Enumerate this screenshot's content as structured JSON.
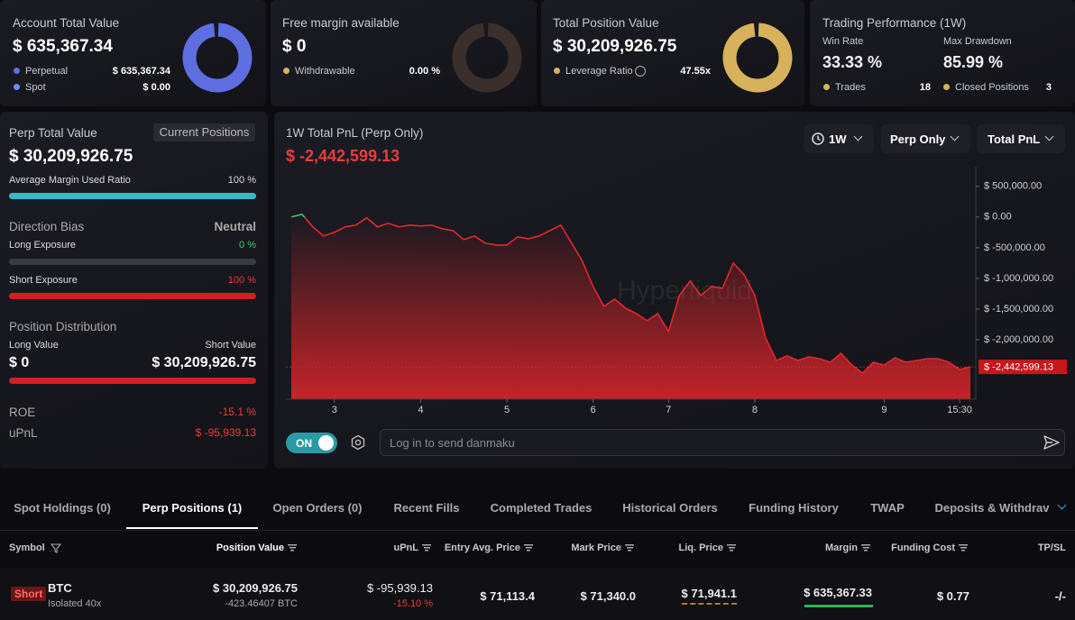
{
  "summary_cards": [
    {
      "title": "Account Total Value",
      "value": "$ 635,367.34",
      "legend": [
        {
          "label": "Perpetual",
          "value": "$ 635,367.34"
        },
        {
          "label": "Spot",
          "value": "$ 0.00"
        }
      ]
    },
    {
      "title": "Free margin available",
      "value": "$ 0",
      "legend": [
        {
          "label": "Withdrawable",
          "value": "0.00 %"
        }
      ]
    },
    {
      "title": "Total Position Value",
      "value": "$ 30,209,926.75",
      "legend": [
        {
          "label": "Leverage Ratio",
          "value": "47.55x"
        }
      ]
    }
  ],
  "performance": {
    "title": "Trading Performance (1W)",
    "win_rate_label": "Win Rate",
    "win_rate": "33.33 %",
    "max_drawdown_label": "Max Drawdown",
    "max_drawdown": "85.99 %",
    "trades_label": "Trades",
    "trades": "18",
    "closed_label": "Closed Positions",
    "closed": "3"
  },
  "perp_panel": {
    "title": "Perp Total Value",
    "button": "Current Positions",
    "value": "$ 30,209,926.75",
    "margin_label": "Average Margin Used Ratio",
    "margin_value": "100 %",
    "bias_label": "Direction Bias",
    "bias_value": "Neutral",
    "long_label": "Long Exposure",
    "long_value": "0 %",
    "short_label": "Short Exposure",
    "short_value": "100 %",
    "distribution_label": "Position Distribution",
    "long_value_label": "Long Value",
    "short_value_label": "Short Value",
    "long_amount": "$ 0",
    "short_amount": "$ 30,209,926.75",
    "roe_label": "ROE",
    "roe_value": "-15.1 %",
    "upnl_label": "uPnL",
    "upnl_value": "$ -95,939.13"
  },
  "chart_controls": {
    "range": "1W",
    "scope": "Perp Only",
    "metric": "Total PnL",
    "toggle": "ON",
    "placeholder": "Log in to send danmaku"
  },
  "chart_data": {
    "type": "area",
    "title": "1W Total PnL (Perp Only)",
    "watermark": "Hyperliquid",
    "x": [
      0,
      1,
      2,
      3,
      4,
      5,
      6,
      7,
      8,
      9,
      10,
      11,
      12,
      13,
      14,
      15,
      16,
      17,
      18,
      19,
      20,
      21,
      22,
      23,
      24,
      25,
      26,
      27,
      28,
      29,
      30,
      31,
      32,
      33,
      34,
      35,
      36,
      37,
      38,
      39,
      40,
      41,
      42,
      43,
      44,
      45,
      46,
      47,
      48,
      49,
      50,
      51,
      52,
      53,
      54,
      55,
      56,
      57,
      58,
      59,
      60,
      61,
      62,
      63
    ],
    "values": [
      0,
      44000,
      -162000,
      -309000,
      -250000,
      -162000,
      -132000,
      -15000,
      -162000,
      -103000,
      -162000,
      -132000,
      -147000,
      -132000,
      -191000,
      -221000,
      -368000,
      -309000,
      -426000,
      -456000,
      -456000,
      -324000,
      -353000,
      -309000,
      -221000,
      -132000,
      -426000,
      -721000,
      -1132000,
      -1456000,
      -1338000,
      -1485000,
      -1574000,
      -1691000,
      -1574000,
      -1868000,
      -1279000,
      -1044000,
      -1279000,
      -1132000,
      -1162000,
      -750000,
      -941000,
      -1279000,
      -1971000,
      -2338000,
      -2265000,
      -2338000,
      -2279000,
      -2309000,
      -2368000,
      -2221000,
      -2412000,
      -2544000,
      -2368000,
      -2412000,
      -2294000,
      -2368000,
      -2338000,
      -2309000,
      -2309000,
      -2368000,
      -2485000,
      -2442599.13
    ],
    "color": "#e3262b",
    "positive_color": "#2fbf71",
    "xlim": [
      -0.5,
      63.5
    ],
    "xticks": [
      {
        "value": 4,
        "label": "3"
      },
      {
        "value": 12,
        "label": "4"
      },
      {
        "value": 20,
        "label": "5"
      },
      {
        "value": 28,
        "label": "6"
      },
      {
        "value": 35,
        "label": "7"
      },
      {
        "value": 43,
        "label": "8"
      },
      {
        "value": 55,
        "label": "9"
      },
      {
        "value": 62,
        "label": "15:30"
      }
    ],
    "ylim": [
      -2970000,
      820000
    ],
    "yticks": [
      {
        "value": 500000,
        "label": "$ 500,000.00"
      },
      {
        "value": 0,
        "label": "$ 0.00"
      },
      {
        "value": -500000,
        "label": "$ -500,000.00"
      },
      {
        "value": -1000000,
        "label": "$ -1,000,000.00"
      },
      {
        "value": -1500000,
        "label": "$ -1,500,000.00"
      },
      {
        "value": -2000000,
        "label": "$ -2,000,000.00"
      }
    ],
    "current_value": -2442599.13,
    "current_label": "$ -2,442,599.13"
  },
  "tabs": {
    "items": [
      "Spot Holdings (0)",
      "Perp Positions (1)",
      "Open Orders (0)",
      "Recent Fills",
      "Completed Trades",
      "Historical Orders",
      "Funding History",
      "TWAP",
      "Deposits & Withdrav"
    ],
    "active": 1
  },
  "table": {
    "columns": [
      "Symbol",
      "Position Value",
      "uPnL",
      "Entry Avg. Price",
      "Mark Price",
      "Liq. Price",
      "Margin",
      "Funding Cost",
      "TP/SL"
    ],
    "rows": [
      {
        "side": "Short",
        "symbol": "BTC",
        "margin_mode": "Isolated 40x",
        "position_value": "$ 30,209,926.75",
        "size": "-423.46407 BTC",
        "upnl": "$ -95,939.13",
        "upnl_pct": "-15.10 %",
        "entry": "$ 71,113.4",
        "mark": "$ 71,340.0",
        "liq": "$ 71,941.1",
        "margin": "$ 635,367.33",
        "funding": "$ 0.77",
        "tpsl": "-/-"
      }
    ]
  }
}
